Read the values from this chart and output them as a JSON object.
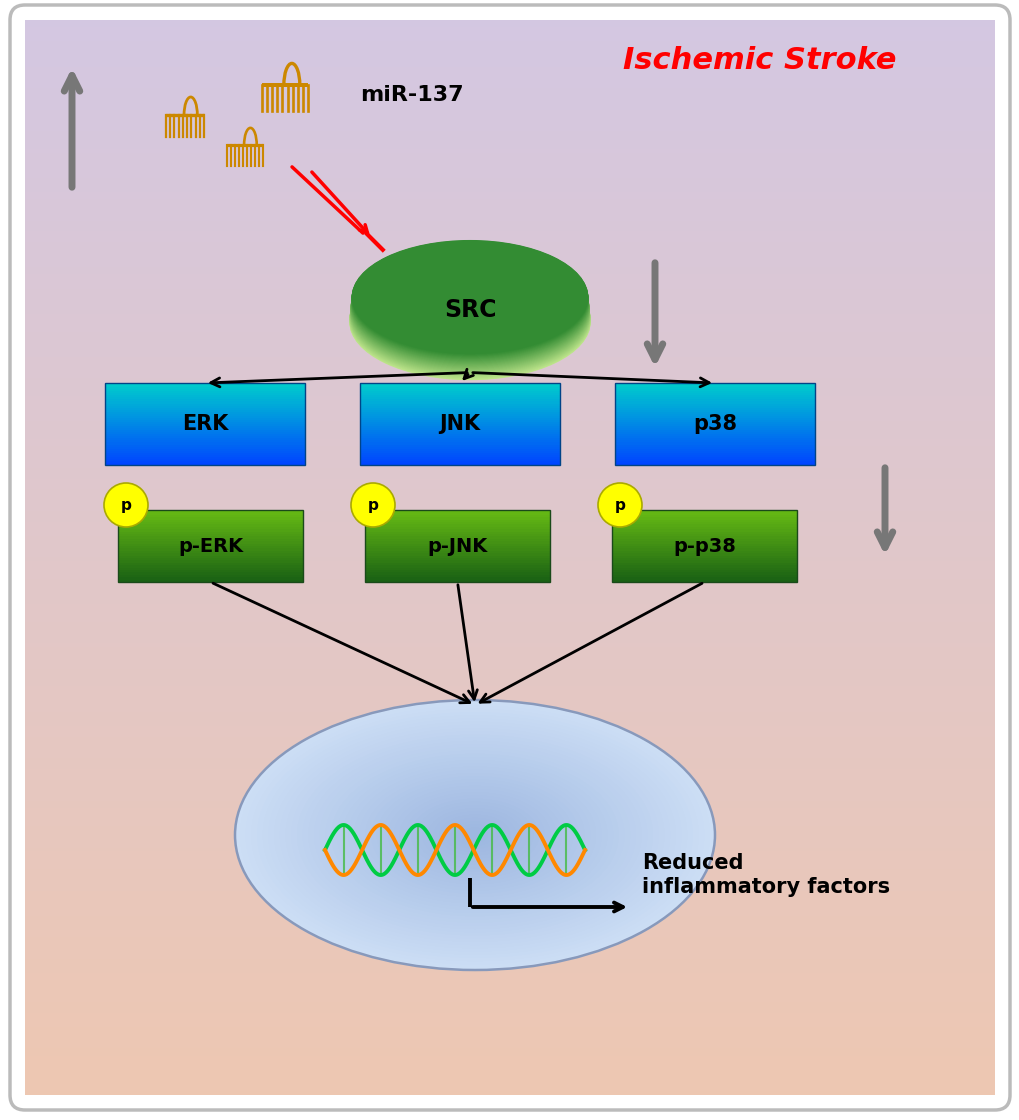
{
  "title": "Ischemic Stroke",
  "title_color": "#FF0000",
  "bg_top_color": "#D4C8E2",
  "bg_bottom_color": "#EEC8B2",
  "mir137_label": "miR-137",
  "src_label": "SRC",
  "erk_label": "ERK",
  "jnk_label": "JNK",
  "p38_label": "p38",
  "perk_label": "p-ERK",
  "pjnk_label": "p-JNK",
  "pp38_label": "p-p38",
  "p_label": "p",
  "reduced_label": "Reduced\ninflammatory factors",
  "mir_rna_color": "#CC8800",
  "arrow_gray": "#777777",
  "inhibit_color": "#FF0000",
  "black": "#000000",
  "src_color_light": "#88CC88",
  "src_color_dark": "#336633",
  "teal_top": "#00CCCC",
  "teal_bottom": "#0044FF",
  "pbox_top": "#88CC44",
  "pbox_bottom": "#226622",
  "p_circle": "#FFFF00",
  "nucleus_color": "#AACCEE",
  "dna_green": "#00CC44",
  "dna_orange": "#FF8800"
}
